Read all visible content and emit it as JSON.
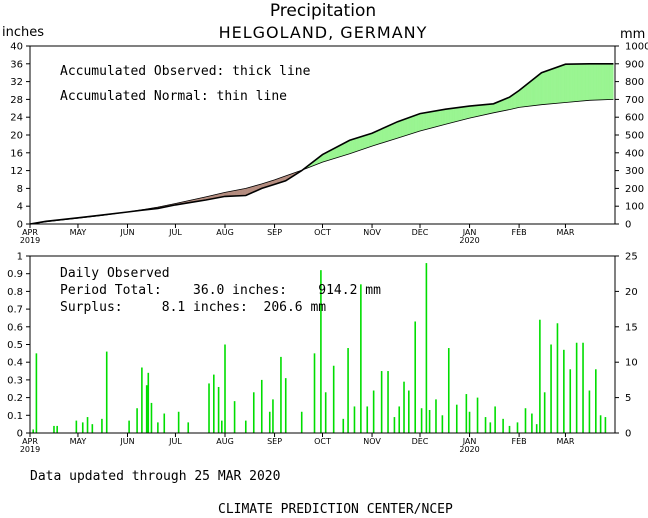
{
  "chart_data": [
    {
      "type": "area",
      "title": "Precipitation",
      "subtitle": "HELGOLAND, GERMANY",
      "ylabel_left": "inches",
      "ylabel_right": "mm",
      "ylim_left": [
        0,
        40
      ],
      "ylim_right": [
        0,
        1000
      ],
      "yticks_left": [
        "0",
        "4",
        "8",
        "12",
        "16",
        "20",
        "24",
        "28",
        "32",
        "36",
        "40"
      ],
      "yticks_right": [
        "0",
        "100",
        "200",
        "300",
        "400",
        "500",
        "600",
        "700",
        "800",
        "900",
        "1000"
      ],
      "xticks": [
        "APR",
        "MAY",
        "JUN",
        "JUL",
        "AUG",
        "SEP",
        "OCT",
        "NOV",
        "DEC",
        "JAN",
        "FEB",
        "MAR"
      ],
      "xtick_years": {
        "APR": "2019",
        "JAN": "2020"
      },
      "annotations": [
        "Accumulated Observed: thick line",
        "Accumulated Normal: thin line"
      ],
      "colors": {
        "surplus": "#99f591",
        "deficit": "#b48c7f",
        "line": "#000000"
      },
      "x_days": [
        0,
        10,
        20,
        30,
        45,
        61,
        70,
        80,
        91,
        100,
        110,
        122,
        135,
        145,
        153,
        160,
        170,
        183,
        200,
        214,
        230,
        244,
        260,
        275,
        290,
        300,
        306,
        320,
        335,
        350,
        365
      ],
      "series": [
        {
          "values": [
            0.0,
            0.6,
            1.0,
            1.4,
            2.0,
            2.7,
            3.1,
            3.5,
            4.3,
            4.8,
            5.4,
            6.2,
            6.4,
            8.0,
            8.9,
            9.7,
            12.0,
            15.6,
            18.8,
            20.4,
            23.0,
            24.8,
            25.8,
            26.5,
            27.0,
            28.5,
            30.0,
            34.0,
            35.9,
            36.0,
            36.0
          ]
        },
        {
          "values": [
            0.0,
            0.5,
            0.9,
            1.3,
            1.9,
            2.7,
            3.2,
            3.8,
            4.6,
            5.3,
            6.1,
            7.1,
            8.0,
            9.0,
            9.9,
            10.8,
            12.1,
            13.9,
            15.8,
            17.5,
            19.3,
            20.9,
            22.4,
            23.8,
            25.0,
            25.7,
            26.2,
            26.8,
            27.3,
            27.8,
            28.0
          ]
        }
      ]
    },
    {
      "type": "bar",
      "title": "Daily Observed",
      "ylabel_left": "",
      "ylabel_right": "",
      "ylim_left": [
        0,
        1
      ],
      "ylim_right": [
        0,
        25
      ],
      "yticks_left": [
        "0",
        "0.1",
        "0.2",
        "0.3",
        "0.4",
        "0.5",
        "0.6",
        "0.7",
        "0.8",
        "0.9",
        "1"
      ],
      "yticks_right": [
        "0",
        "5",
        "10",
        "15",
        "20",
        "25"
      ],
      "xticks": [
        "APR",
        "MAY",
        "JUN",
        "JUL",
        "AUG",
        "SEP",
        "OCT",
        "NOV",
        "DEC",
        "JAN",
        "FEB",
        "MAR"
      ],
      "xtick_years": {
        "APR": "2019",
        "JAN": "2020"
      },
      "annotations": [
        "Period Total:    36.0 inches:    914.2 mm",
        "Surplus:     8.1 inches:  206.6 mm"
      ],
      "bar_color": "#00dd00",
      "days": [
        2,
        4,
        15,
        17,
        29,
        33,
        36,
        39,
        45,
        48,
        62,
        67,
        70,
        73,
        74,
        76,
        80,
        84,
        93,
        99,
        112,
        115,
        118,
        120,
        122,
        128,
        135,
        140,
        145,
        150,
        152,
        157,
        160,
        170,
        178,
        182,
        185,
        190,
        196,
        199,
        203,
        207,
        211,
        215,
        220,
        224,
        228,
        231,
        234,
        237,
        241,
        245,
        248,
        250,
        254,
        258,
        262,
        267,
        273,
        275,
        280,
        285,
        288,
        291,
        296,
        300,
        305,
        310,
        314,
        317,
        319,
        322,
        326,
        330,
        334,
        338,
        342,
        346,
        350,
        354,
        357,
        360
      ],
      "values": [
        0.02,
        0.45,
        0.04,
        0.04,
        0.07,
        0.06,
        0.09,
        0.05,
        0.08,
        0.46,
        0.07,
        0.14,
        0.37,
        0.27,
        0.34,
        0.17,
        0.06,
        0.11,
        0.12,
        0.06,
        0.28,
        0.33,
        0.26,
        0.07,
        0.5,
        0.18,
        0.07,
        0.23,
        0.3,
        0.12,
        0.19,
        0.43,
        0.31,
        0.12,
        0.45,
        0.92,
        0.23,
        0.38,
        0.08,
        0.48,
        0.15,
        0.84,
        0.15,
        0.24,
        0.35,
        0.35,
        0.09,
        0.15,
        0.29,
        0.24,
        0.63,
        0.14,
        0.96,
        0.13,
        0.19,
        0.1,
        0.48,
        0.16,
        0.22,
        0.12,
        0.2,
        0.09,
        0.06,
        0.15,
        0.08,
        0.04,
        0.06,
        0.14,
        0.11,
        0.05,
        0.64,
        0.23,
        0.5,
        0.62,
        0.47,
        0.36,
        0.51,
        0.51,
        0.24,
        0.36,
        0.1,
        0.09
      ]
    }
  ],
  "footer": {
    "updated": "Data updated through 25 MAR 2020",
    "credit": "CLIMATE PREDICTION CENTER/NCEP"
  }
}
